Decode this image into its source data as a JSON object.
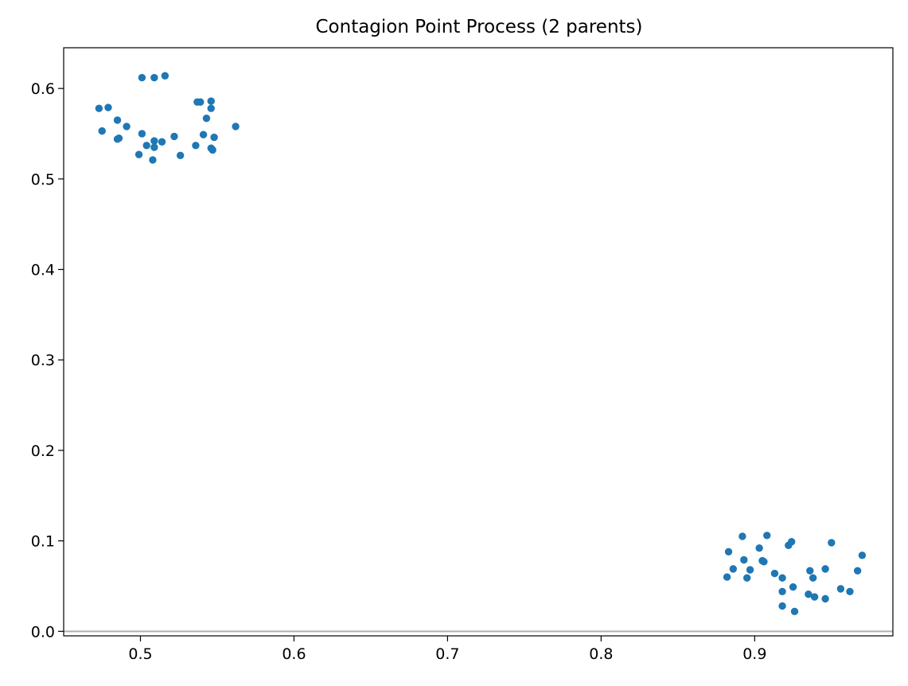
{
  "chart_data": {
    "type": "scatter",
    "title": "Contagion Point Process (2 parents)",
    "xlabel": "",
    "ylabel": "",
    "xlim": [
      0.45,
      0.99
    ],
    "ylim": [
      -0.005,
      0.645
    ],
    "xticks": [
      0.5,
      0.6,
      0.7,
      0.8,
      0.9
    ],
    "xtick_labels": [
      "0.5",
      "0.6",
      "0.7",
      "0.8",
      "0.9"
    ],
    "yticks": [
      0.0,
      0.1,
      0.2,
      0.3,
      0.4,
      0.5,
      0.6
    ],
    "ytick_labels": [
      "0.0",
      "0.1",
      "0.2",
      "0.3",
      "0.4",
      "0.5",
      "0.6"
    ],
    "grid": false,
    "reference_line_y": 0.0,
    "colors": {
      "points": "#1f77b4",
      "reference_line": "#b0b0b0",
      "axes": "#000000"
    },
    "series": [
      {
        "points": [
          [
            0.501,
            0.612
          ],
          [
            0.509,
            0.612
          ],
          [
            0.516,
            0.614
          ],
          [
            0.473,
            0.578
          ],
          [
            0.479,
            0.579
          ],
          [
            0.537,
            0.585
          ],
          [
            0.539,
            0.585
          ],
          [
            0.546,
            0.586
          ],
          [
            0.546,
            0.578
          ],
          [
            0.485,
            0.565
          ],
          [
            0.491,
            0.558
          ],
          [
            0.475,
            0.553
          ],
          [
            0.501,
            0.55
          ],
          [
            0.543,
            0.567
          ],
          [
            0.541,
            0.549
          ],
          [
            0.562,
            0.558
          ],
          [
            0.548,
            0.546
          ],
          [
            0.485,
            0.544
          ],
          [
            0.486,
            0.545
          ],
          [
            0.522,
            0.547
          ],
          [
            0.504,
            0.537
          ],
          [
            0.509,
            0.542
          ],
          [
            0.514,
            0.541
          ],
          [
            0.509,
            0.535
          ],
          [
            0.536,
            0.537
          ],
          [
            0.546,
            0.534
          ],
          [
            0.547,
            0.532
          ],
          [
            0.499,
            0.527
          ],
          [
            0.526,
            0.526
          ],
          [
            0.508,
            0.521
          ]
        ]
      },
      {
        "points": [
          [
            0.892,
            0.105
          ],
          [
            0.908,
            0.106
          ],
          [
            0.924,
            0.099
          ],
          [
            0.922,
            0.095
          ],
          [
            0.95,
            0.098
          ],
          [
            0.883,
            0.088
          ],
          [
            0.903,
            0.092
          ],
          [
            0.97,
            0.084
          ],
          [
            0.893,
            0.079
          ],
          [
            0.905,
            0.078
          ],
          [
            0.906,
            0.077
          ],
          [
            0.886,
            0.069
          ],
          [
            0.897,
            0.068
          ],
          [
            0.913,
            0.064
          ],
          [
            0.936,
            0.067
          ],
          [
            0.946,
            0.069
          ],
          [
            0.967,
            0.067
          ],
          [
            0.882,
            0.06
          ],
          [
            0.895,
            0.059
          ],
          [
            0.918,
            0.059
          ],
          [
            0.938,
            0.059
          ],
          [
            0.925,
            0.049
          ],
          [
            0.956,
            0.047
          ],
          [
            0.962,
            0.044
          ],
          [
            0.918,
            0.044
          ],
          [
            0.935,
            0.041
          ],
          [
            0.939,
            0.038
          ],
          [
            0.946,
            0.036
          ],
          [
            0.918,
            0.028
          ],
          [
            0.926,
            0.022
          ]
        ]
      }
    ]
  }
}
